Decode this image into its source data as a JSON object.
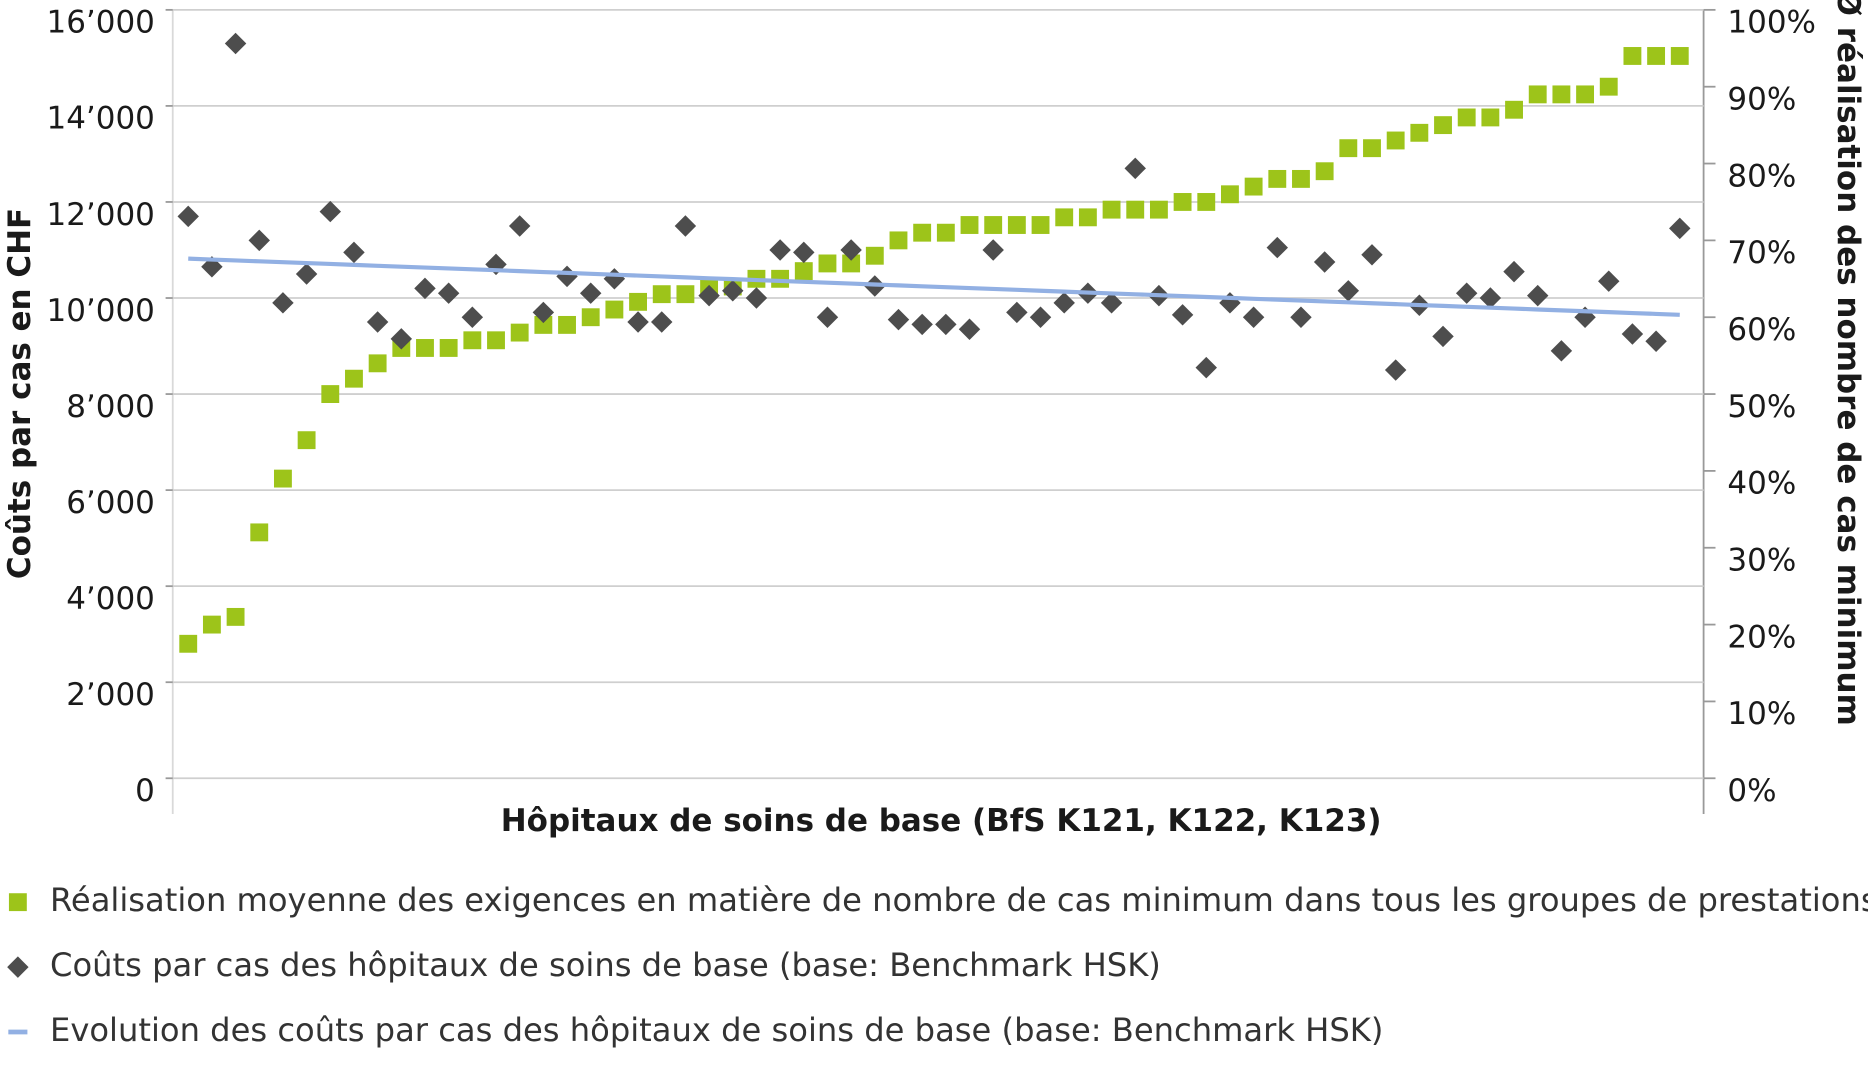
{
  "chart_data": {
    "type": "scatter",
    "categories": [
      null,
      null,
      null,
      null,
      null,
      null,
      null,
      null,
      null,
      null,
      null,
      null,
      null,
      null,
      null,
      null,
      null,
      null,
      null,
      null,
      null,
      null,
      null,
      null,
      null,
      null,
      null,
      null,
      null,
      null,
      null,
      null,
      null,
      null,
      null,
      null,
      null,
      null,
      null,
      null,
      null,
      null,
      null,
      null,
      null,
      null,
      null,
      null,
      null,
      null,
      null,
      null,
      null,
      null,
      null,
      null,
      null,
      null,
      null,
      null,
      null,
      null,
      null,
      null
    ],
    "x_label": "Hôpitaux de soins de base (BfS K121, K122, K123)",
    "y_label": "Coûts par cas en CHF",
    "y2_label": "Ø réalisation des nombre de cas minimum",
    "ylim": [
      0,
      16000
    ],
    "yticks": [
      {
        "value": 0,
        "label": "0"
      },
      {
        "value": 2000,
        "label": "2’000"
      },
      {
        "value": 4000,
        "label": "4’000"
      },
      {
        "value": 6000,
        "label": "6’000"
      },
      {
        "value": 8000,
        "label": "8’000"
      },
      {
        "value": 10000,
        "label": "10’000"
      },
      {
        "value": 12000,
        "label": "12’000"
      },
      {
        "value": 14000,
        "label": "14’000"
      },
      {
        "value": 16000,
        "label": "16’000"
      }
    ],
    "y2lim": [
      0,
      100
    ],
    "y2ticks": [
      {
        "value": 0,
        "label": "0%"
      },
      {
        "value": 10,
        "label": "10%"
      },
      {
        "value": 20,
        "label": "20%"
      },
      {
        "value": 30,
        "label": "30%"
      },
      {
        "value": 40,
        "label": "40%"
      },
      {
        "value": 50,
        "label": "50%"
      },
      {
        "value": 60,
        "label": "60%"
      },
      {
        "value": 70,
        "label": "70%"
      },
      {
        "value": 80,
        "label": "80%"
      },
      {
        "value": 90,
        "label": "90%"
      },
      {
        "value": 100,
        "label": "100%"
      }
    ],
    "grid": true,
    "series": [
      {
        "name": "Réalisation moyenne des exigences en matière de nombre de cas minimum dans tous les groupes de prestations",
        "color": "#9dc41a",
        "marker": "square",
        "axis": "y2",
        "values": [
          17.5,
          20,
          21,
          32,
          39,
          44,
          50,
          52,
          54,
          56,
          56,
          56,
          57,
          57,
          58,
          59,
          59,
          60,
          61,
          62,
          63,
          63,
          64,
          64,
          65,
          65,
          66,
          67,
          67,
          68,
          70,
          71,
          71,
          72,
          72,
          72,
          72,
          73,
          73,
          74,
          74,
          74,
          75,
          75,
          76,
          77,
          78,
          78,
          79,
          82,
          82,
          83,
          84,
          85,
          86,
          86,
          87,
          89,
          89,
          89,
          90,
          94,
          94,
          94
        ]
      },
      {
        "name": "Coûts par cas des hôpitaux de soins de base (base: Benchmark HSK)",
        "color": "#4d4d4d",
        "marker": "diamond",
        "values": [
          11700,
          10650,
          15300,
          11200,
          9900,
          10500,
          11800,
          10950,
          9500,
          9150,
          10200,
          10100,
          9600,
          10700,
          11500,
          9700,
          10450,
          10100,
          10400,
          9500,
          9500,
          11500,
          10050,
          10150,
          10000,
          11000,
          10950,
          9600,
          11000,
          10250,
          9550,
          9450,
          9450,
          9350,
          11000,
          9700,
          9600,
          9900,
          10100,
          9900,
          12700,
          10050,
          9650,
          8550,
          9900,
          9600,
          11050,
          9600,
          10750,
          10150,
          10900,
          8500,
          9850,
          9200,
          10100,
          10000,
          10550,
          10050,
          8900,
          9600,
          10350,
          9250,
          9100,
          11450
        ]
      },
      {
        "name": "Evolution des coûts par cas des hôpitaux de soins de base (base: Benchmark HSK)",
        "color": "#92b0e3",
        "marker": "line",
        "values": [
          10820,
          10801,
          10783,
          10764,
          10746,
          10727,
          10709,
          10690,
          10671,
          10653,
          10634,
          10616,
          10597,
          10579,
          10560,
          10541,
          10523,
          10504,
          10486,
          10467,
          10449,
          10430,
          10411,
          10393,
          10374,
          10356,
          10337,
          10319,
          10300,
          10281,
          10263,
          10244,
          10226,
          10207,
          10189,
          10170,
          10151,
          10133,
          10114,
          10096,
          10077,
          10059,
          10040,
          10021,
          10003,
          9984,
          9966,
          9947,
          9929,
          9910,
          9891,
          9873,
          9854,
          9836,
          9817,
          9799,
          9780,
          9761,
          9743,
          9724,
          9706,
          9687,
          9669,
          9650
        ]
      }
    ]
  }
}
